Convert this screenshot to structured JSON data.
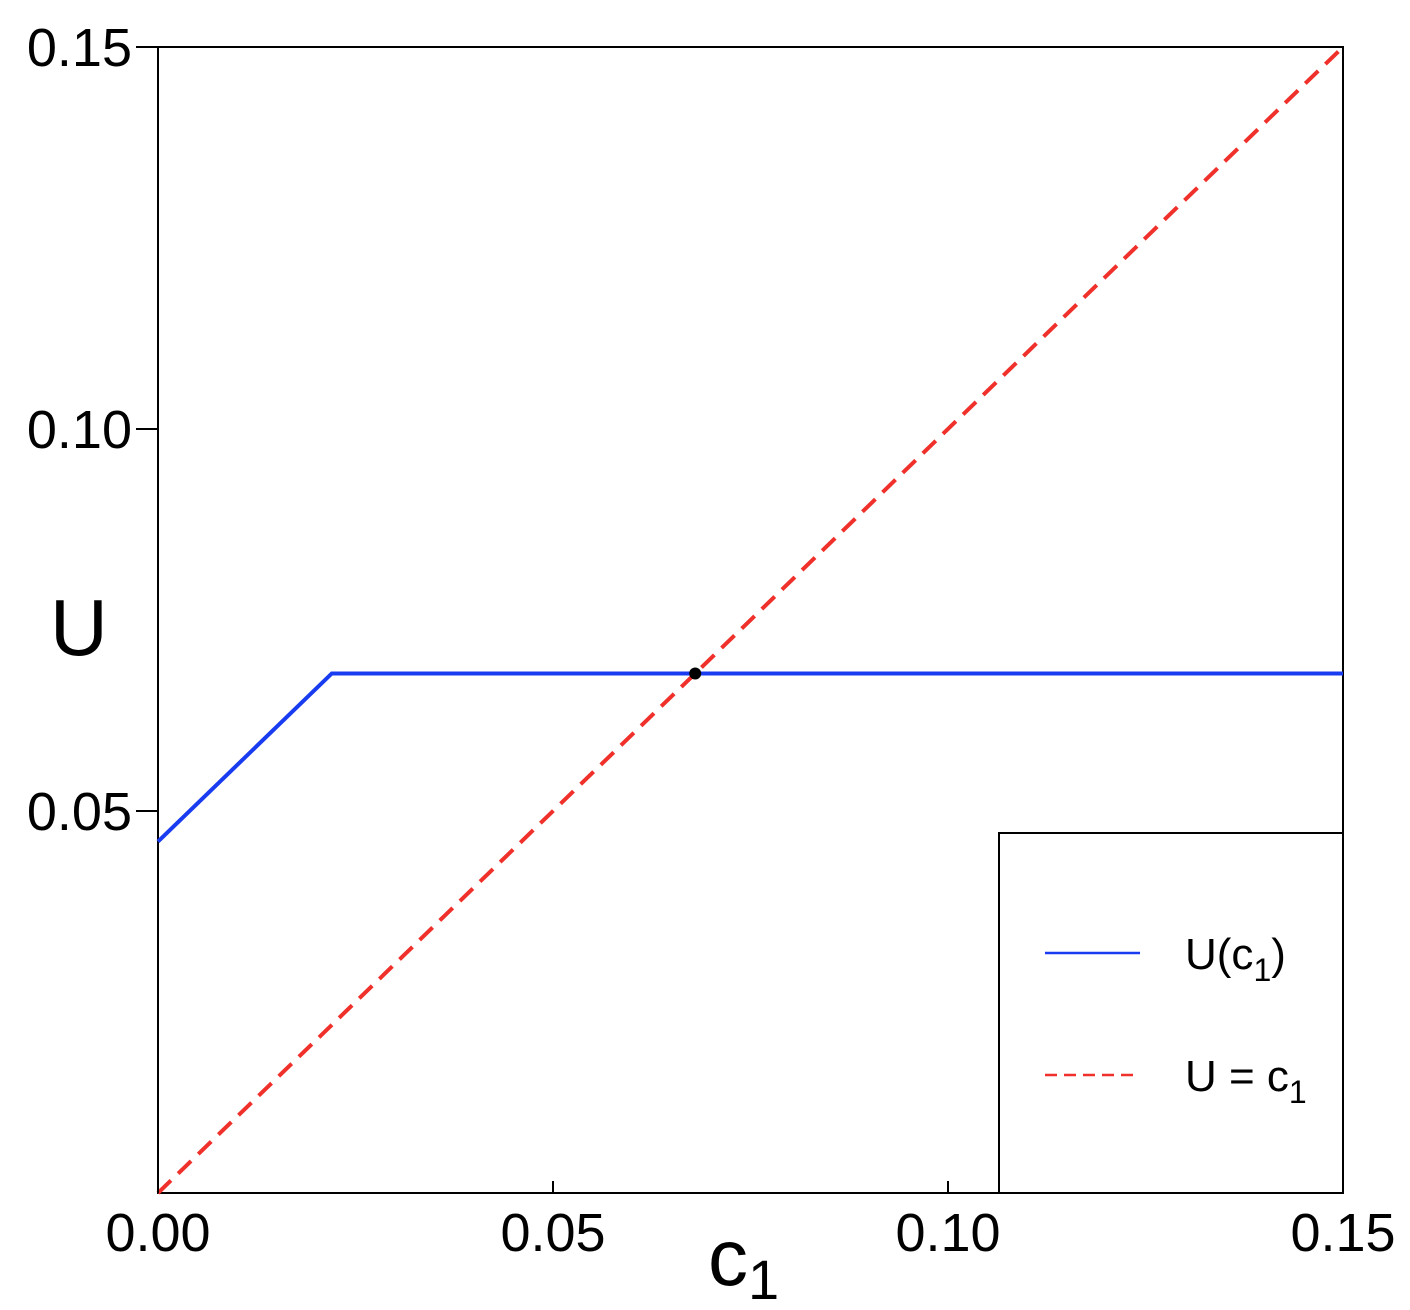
{
  "chart_data": {
    "type": "line",
    "xlabel": "c",
    "xlabel_sub": "1",
    "ylabel": "U",
    "xlim": [
      0.0,
      0.15
    ],
    "ylim": [
      0.0,
      0.15
    ],
    "x_ticks": [
      "0.00",
      "0.05",
      "0.10",
      "0.15"
    ],
    "x_tick_values": [
      0.0,
      0.05,
      0.1,
      0.15
    ],
    "y_ticks": [
      "0.05",
      "0.10",
      "0.15"
    ],
    "y_tick_values": [
      0.05,
      0.1,
      0.15
    ],
    "grid": false,
    "legend_position": "bottom-right",
    "series": [
      {
        "name": "U(c1)",
        "legend_main": "U(c",
        "legend_sub": "1",
        "legend_tail": ")",
        "color": "#1a3cf0",
        "style": "solid",
        "x": [
          0.0,
          0.022,
          0.15
        ],
        "y": [
          0.046,
          0.068,
          0.068
        ]
      },
      {
        "name": "U = c1",
        "legend_main": "U = c",
        "legend_sub": "1",
        "legend_tail": "",
        "color": "#f0302a",
        "style": "dashed",
        "x": [
          0.0,
          0.15
        ],
        "y": [
          0.0,
          0.15
        ]
      }
    ],
    "annotations": [
      {
        "type": "point",
        "x": 0.068,
        "y": 0.068,
        "color": "#000000"
      }
    ]
  }
}
